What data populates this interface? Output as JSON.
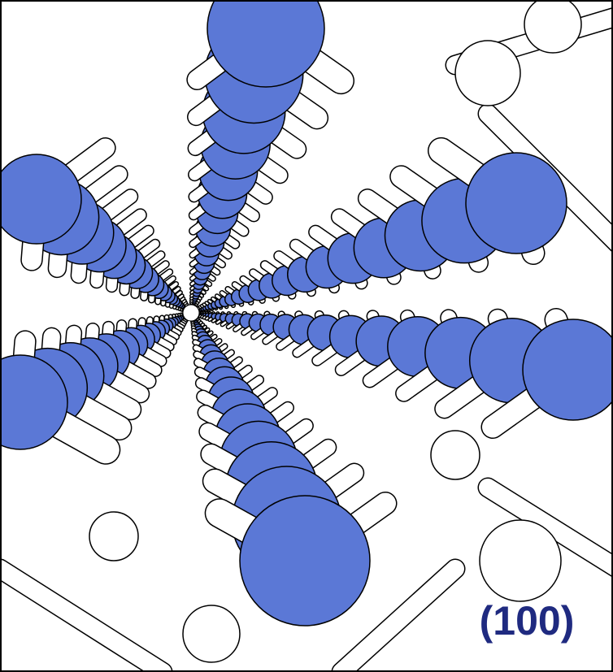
{
  "label": "(100)"
}
